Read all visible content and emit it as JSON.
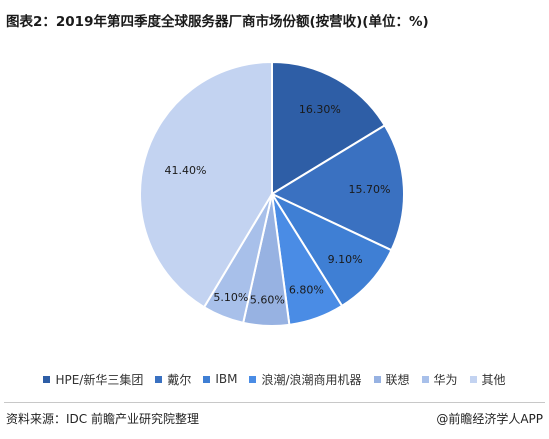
{
  "header": {
    "title": "图表2：2019年第四季度全球服务器厂商市场份额(按营收)(单位：%)"
  },
  "chart_data": {
    "type": "pie",
    "title": "图表2：2019年第四季度全球服务器厂商市场份额(按营收)(单位：%)",
    "unit": "%",
    "legend_position": "bottom",
    "start_angle": "12 o'clock",
    "direction": "clockwise",
    "slices": [
      {
        "name": "HPE/新华三集团",
        "value": 16.3,
        "label": "16.30%",
        "color": "#2e5ea6"
      },
      {
        "name": "戴尔",
        "value": 15.7,
        "label": "15.70%",
        "color": "#3a71c1"
      },
      {
        "name": "IBM",
        "value": 9.1,
        "label": "9.10%",
        "color": "#3f7fd4"
      },
      {
        "name": "浪潮/浪潮商用机器",
        "value": 6.8,
        "label": "6.80%",
        "color": "#4a8ce5"
      },
      {
        "name": "联想",
        "value": 5.6,
        "label": "5.60%",
        "color": "#97b2e2"
      },
      {
        "name": "华为",
        "value": 5.1,
        "label": "5.10%",
        "color": "#a8c0ea"
      },
      {
        "name": "其他",
        "value": 41.4,
        "label": "41.40%",
        "color": "#c3d3f1"
      }
    ]
  },
  "footer": {
    "source": "资料来源：IDC 前瞻产业研究院整理",
    "brand": "@前瞻经济学人APP"
  }
}
